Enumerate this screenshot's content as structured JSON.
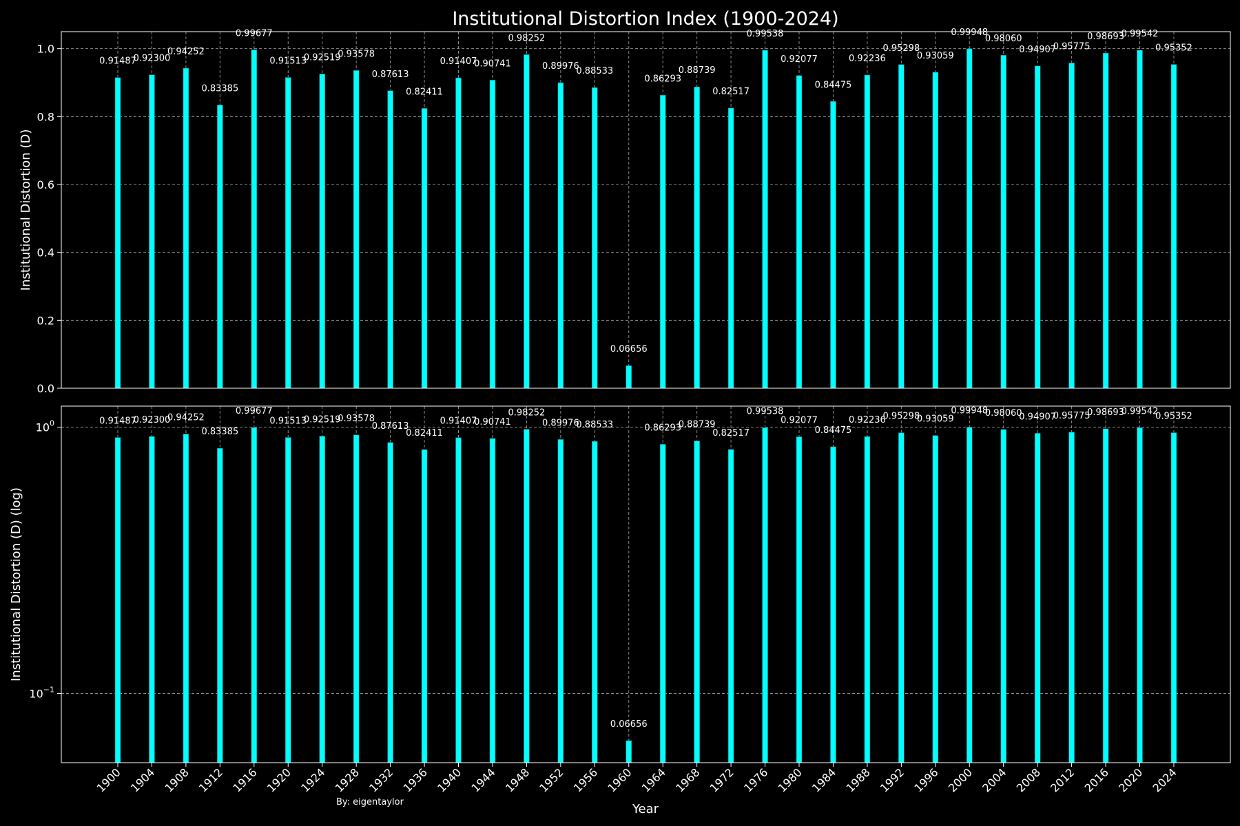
{
  "credit": "By: eigentaylor",
  "colors": {
    "background": "#000000",
    "bar": "#00ffff",
    "bar_edge": "#1b6e6e",
    "grid": "#8a8a8a",
    "text": "#ffffff"
  },
  "chart_data": {
    "type": "bar",
    "title": "Institutional Distortion Index (1900-2024)",
    "xlabel": "Year",
    "categories": [
      1900,
      1904,
      1908,
      1912,
      1916,
      1920,
      1924,
      1928,
      1932,
      1936,
      1940,
      1944,
      1948,
      1952,
      1956,
      1960,
      1964,
      1968,
      1972,
      1976,
      1980,
      1984,
      1988,
      1992,
      1996,
      2000,
      2004,
      2008,
      2012,
      2016,
      2020,
      2024
    ],
    "labels": [
      "0.91487",
      "0.92300",
      "0.94252",
      "0.83385",
      "0.99677",
      "0.91513",
      "0.92519",
      "0.93578",
      "0.87613",
      "0.82411",
      "0.91407",
      "0.90741",
      "0.98252",
      "0.89976",
      "0.88533",
      "0.06656",
      "0.86293",
      "0.88739",
      "0.82517",
      "0.99538",
      "0.92077",
      "0.84475",
      "0.92236",
      "0.95298",
      "0.93059",
      "0.99948",
      "0.98060",
      "0.94907",
      "0.95775",
      "0.98693",
      "0.99542",
      "0.95352"
    ],
    "values": [
      0.91487,
      0.923,
      0.94252,
      0.83385,
      0.99677,
      0.91513,
      0.92519,
      0.93578,
      0.87613,
      0.82411,
      0.91407,
      0.90741,
      0.98252,
      0.89976,
      0.88533,
      0.06656,
      0.86293,
      0.88739,
      0.82517,
      0.99538,
      0.92077,
      0.84475,
      0.92236,
      0.95298,
      0.93059,
      0.99948,
      0.9806,
      0.94907,
      0.95775,
      0.98693,
      0.99542,
      0.95352
    ],
    "panels": [
      {
        "ylabel": "Institutional Distortion (D)",
        "yscale": "linear",
        "ylim": [
          0,
          1.05
        ],
        "yticks": [
          0.0,
          0.2,
          0.4,
          0.6,
          0.8,
          1.0
        ],
        "yticklabels": [
          "0.0",
          "0.2",
          "0.4",
          "0.6",
          "0.8",
          "1.0"
        ]
      },
      {
        "ylabel": "Institutional Distortion (D) (log)",
        "yscale": "log",
        "ylim": [
          0.055,
          1.2
        ],
        "yticks": [
          1.0,
          0.1
        ],
        "yticklabels": [
          "10^0",
          "10^−1"
        ]
      }
    ],
    "grid": true
  }
}
